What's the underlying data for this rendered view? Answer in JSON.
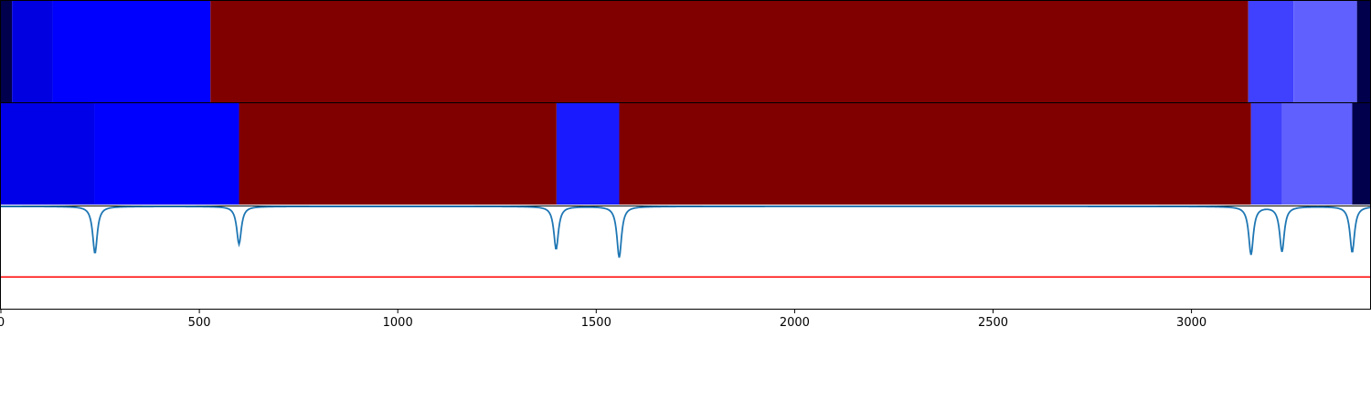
{
  "chart_data": {
    "type": "heatmap",
    "title": "",
    "xlabel": "",
    "ylabel": "",
    "xlim": [
      0,
      3450
    ],
    "xticks": [
      0,
      500,
      1000,
      1500,
      2000,
      2500,
      3000
    ],
    "xtick_labels": [
      "0",
      "500",
      "1000",
      "1500",
      "2000",
      "2500",
      "3000"
    ],
    "segment_tracks": [
      {
        "segments": [
          {
            "start": 0,
            "end": 28,
            "color": "#00004c"
          },
          {
            "start": 28,
            "end": 130,
            "color": "#0000e0"
          },
          {
            "start": 130,
            "end": 528,
            "color": "#0000ff"
          },
          {
            "start": 528,
            "end": 3143,
            "color": "#800000"
          },
          {
            "start": 3143,
            "end": 3257,
            "color": "#4040ff"
          },
          {
            "start": 3257,
            "end": 3417,
            "color": "#6060ff"
          },
          {
            "start": 3417,
            "end": 3450,
            "color": "#00004c"
          }
        ]
      },
      {
        "segments": [
          {
            "start": 0,
            "end": 235,
            "color": "#0000e8"
          },
          {
            "start": 235,
            "end": 600,
            "color": "#0000ff"
          },
          {
            "start": 600,
            "end": 1400,
            "color": "#800000"
          },
          {
            "start": 1400,
            "end": 1558,
            "color": "#1a1aff"
          },
          {
            "start": 1558,
            "end": 3150,
            "color": "#800000"
          },
          {
            "start": 3150,
            "end": 3228,
            "color": "#4040ff"
          },
          {
            "start": 3228,
            "end": 3405,
            "color": "#6060ff"
          },
          {
            "start": 3405,
            "end": 3450,
            "color": "#00004c"
          }
        ]
      }
    ],
    "signal": {
      "color": "#1f77b4",
      "baseline": 0,
      "ylim": [
        -1.0,
        0.0
      ],
      "dips": [
        {
          "x": 237,
          "depth": -0.46
        },
        {
          "x": 600,
          "depth": -0.37
        },
        {
          "x": 1399,
          "depth": -0.42
        },
        {
          "x": 1558,
          "depth": -0.5
        },
        {
          "x": 3150,
          "depth": -0.47
        },
        {
          "x": 3228,
          "depth": -0.44
        },
        {
          "x": 3405,
          "depth": -0.45
        }
      ]
    },
    "threshold": {
      "value": -0.69,
      "color": "#ff0000"
    }
  }
}
